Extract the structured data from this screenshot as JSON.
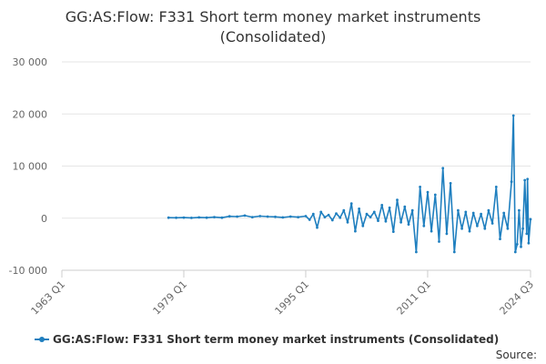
{
  "chart_data": {
    "type": "line",
    "title": [
      "GG:AS:Flow: F331 Short term money market instruments",
      "(Consolidated)"
    ],
    "xlabel": "",
    "ylabel": "",
    "ylim": [
      -10000,
      30000
    ],
    "y_ticks": [
      {
        "value": 30000,
        "label": "30 000"
      },
      {
        "value": 20000,
        "label": "20 000"
      },
      {
        "value": 10000,
        "label": "10 000"
      },
      {
        "value": 0,
        "label": "0"
      },
      {
        "value": -10000,
        "label": "-10 000"
      }
    ],
    "x_ticks": [
      {
        "value": 1963.0,
        "label": "1963 Q1"
      },
      {
        "value": 1979.0,
        "label": "1979 Q1"
      },
      {
        "value": 1995.0,
        "label": "1995 Q1"
      },
      {
        "value": 2011.0,
        "label": "2011 Q1"
      },
      {
        "value": 2024.5,
        "label": "2024 Q3"
      }
    ],
    "xlim": [
      1963.0,
      2024.5
    ],
    "grid": "horizontal",
    "legend_position": "bottom",
    "series": [
      {
        "name": "GG:AS:Flow: F331 Short term money market instruments (Consolidated)",
        "color": "#1f7fbf",
        "points": [
          [
            1977.0,
            100
          ],
          [
            1978.0,
            80
          ],
          [
            1979.0,
            120
          ],
          [
            1980.0,
            60
          ],
          [
            1981.0,
            150
          ],
          [
            1982.0,
            90
          ],
          [
            1983.0,
            200
          ],
          [
            1984.0,
            100
          ],
          [
            1985.0,
            350
          ],
          [
            1986.0,
            300
          ],
          [
            1987.0,
            500
          ],
          [
            1988.0,
            200
          ],
          [
            1989.0,
            400
          ],
          [
            1990.0,
            300
          ],
          [
            1991.0,
            250
          ],
          [
            1992.0,
            150
          ],
          [
            1993.0,
            300
          ],
          [
            1994.0,
            200
          ],
          [
            1995.0,
            400
          ],
          [
            1995.5,
            -300
          ],
          [
            1996.0,
            800
          ],
          [
            1996.5,
            -1800
          ],
          [
            1997.0,
            1200
          ],
          [
            1997.5,
            200
          ],
          [
            1998.0,
            600
          ],
          [
            1998.5,
            -400
          ],
          [
            1999.0,
            900
          ],
          [
            1999.5,
            100
          ],
          [
            2000.0,
            1500
          ],
          [
            2000.5,
            -800
          ],
          [
            2001.0,
            2800
          ],
          [
            2001.5,
            -2500
          ],
          [
            2002.0,
            1800
          ],
          [
            2002.5,
            -1500
          ],
          [
            2003.0,
            800
          ],
          [
            2003.5,
            200
          ],
          [
            2004.0,
            1200
          ],
          [
            2004.5,
            -500
          ],
          [
            2005.0,
            2500
          ],
          [
            2005.5,
            -600
          ],
          [
            2006.0,
            2000
          ],
          [
            2006.5,
            -2600
          ],
          [
            2007.0,
            3500
          ],
          [
            2007.5,
            -800
          ],
          [
            2008.0,
            2200
          ],
          [
            2008.5,
            -1200
          ],
          [
            2009.0,
            1500
          ],
          [
            2009.5,
            -6500
          ],
          [
            2010.0,
            6000
          ],
          [
            2010.5,
            -1500
          ],
          [
            2011.0,
            5000
          ],
          [
            2011.5,
            -2500
          ],
          [
            2012.0,
            4500
          ],
          [
            2012.5,
            -4500
          ],
          [
            2013.0,
            9600
          ],
          [
            2013.5,
            -3000
          ],
          [
            2014.0,
            6700
          ],
          [
            2014.5,
            -6500
          ],
          [
            2015.0,
            1500
          ],
          [
            2015.5,
            -2000
          ],
          [
            2016.0,
            1200
          ],
          [
            2016.5,
            -2500
          ],
          [
            2017.0,
            1000
          ],
          [
            2017.5,
            -1500
          ],
          [
            2018.0,
            800
          ],
          [
            2018.5,
            -2000
          ],
          [
            2019.0,
            1500
          ],
          [
            2019.5,
            -1000
          ],
          [
            2020.0,
            6000
          ],
          [
            2020.5,
            -4000
          ],
          [
            2021.0,
            1000
          ],
          [
            2021.5,
            -2000
          ],
          [
            2022.0,
            7000
          ],
          [
            2022.25,
            19700
          ],
          [
            2022.5,
            -6500
          ],
          [
            2022.75,
            -5000
          ],
          [
            2023.0,
            1500
          ],
          [
            2023.25,
            -5500
          ],
          [
            2023.5,
            -2000
          ],
          [
            2023.75,
            7300
          ],
          [
            2024.0,
            -3000
          ],
          [
            2024.1,
            7500
          ],
          [
            2024.25,
            -4800
          ],
          [
            2024.5,
            -200
          ]
        ]
      }
    ],
    "source": "Source:"
  }
}
